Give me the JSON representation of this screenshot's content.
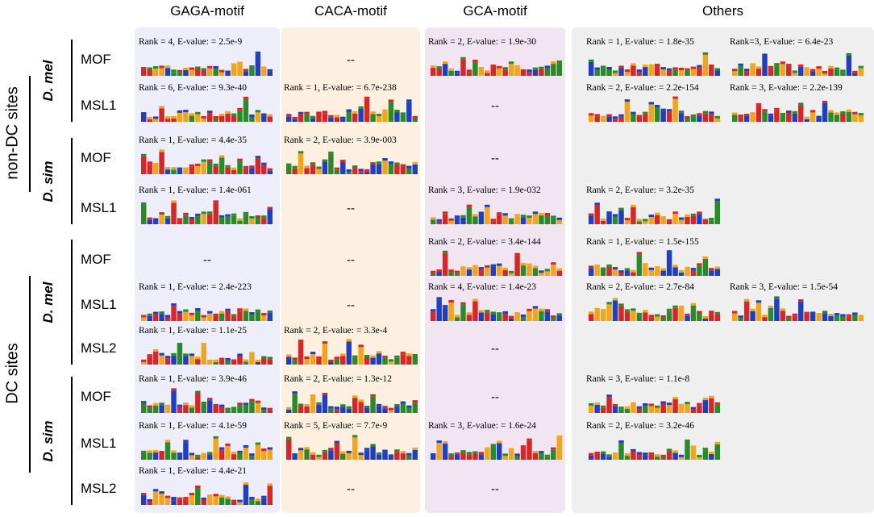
{
  "columns": [
    "GAGA-motif",
    "CACA-motif",
    "GCA-motif",
    "Others"
  ],
  "groups": [
    {
      "label": "non-DC sites",
      "species": [
        {
          "label": "D. mel",
          "rows": [
            {
              "label": "MOF",
              "cells": [
                "Rank = 4, E-value: = 2.5e-9",
                "--",
                "Rank = 2, E-value: = 1.9e-30",
                "Rank = 1, E-value: = 1.8e-35",
                "Rank=3, E-value: = 6.4e-23"
              ]
            },
            {
              "label": "MSL1",
              "cells": [
                "Rank = 6, E-value: = 9.3e-40",
                "Rank = 1, E-value: = 6.7e-238",
                "--",
                "Rank = 2, E-value: = 2.2e-154",
                "Rank = 3, E-value: = 2.2e-139"
              ]
            }
          ]
        },
        {
          "label": "D. sim",
          "rows": [
            {
              "label": "MOF",
              "cells": [
                "Rank = 1, E-value: = 4.4e-35",
                "Rank = 2, E-value: = 3.9e-003",
                "--",
                null,
                null
              ]
            },
            {
              "label": "MSL1",
              "cells": [
                "Rank = 1, E-value: = 1.4e-061",
                "--",
                "Rank = 3, E-value: = 1.9e-032",
                "Rank = 2, E-value: = 3.2e-35",
                null
              ]
            }
          ]
        }
      ]
    },
    {
      "label": "DC sites",
      "species": [
        {
          "label": "D. mel",
          "rows": [
            {
              "label": "MOF",
              "cells": [
                "--",
                "--",
                "Rank = 2, E-value: = 3.4e-144",
                "Rank = 1, E-value: = 1.5e-155",
                null
              ]
            },
            {
              "label": "MSL1",
              "cells": [
                "Rank = 1, E-value: = 2.4e-223",
                "--",
                "Rank = 4, E-value: = 1.4e-23",
                "Rank = 2, E-value: = 2.7e-84",
                "Rank = 3, E-value: = 1.5e-54"
              ]
            },
            {
              "label": "MSL2",
              "cells": [
                "Rank = 1, E-value: = 1.1e-25",
                "Rank = 2, E-value: = 3.3e-4",
                "--",
                null,
                null
              ]
            }
          ]
        },
        {
          "label": "D. sim",
          "rows": [
            {
              "label": "MOF",
              "cells": [
                "Rank = 1, E-value: = 3.9e-46",
                "Rank = 2, E-value: = 1.3e-12",
                "--",
                "Rank = 3, E-value: = 1.1e-8",
                null
              ]
            },
            {
              "label": "MSL1",
              "cells": [
                "Rank = 1, E-value: = 4.1e-59",
                "Rank = 5, E-value: = 7.7e-9",
                "Rank = 3, E-value: = 1.6e-24",
                "Rank = 2, E-value: = 3.2e-46",
                null
              ]
            },
            {
              "label": "MSL2",
              "cells": [
                "Rank = 1, E-value: = 4.4e-21",
                "--",
                "--",
                null,
                null
              ]
            }
          ]
        }
      ]
    }
  ]
}
